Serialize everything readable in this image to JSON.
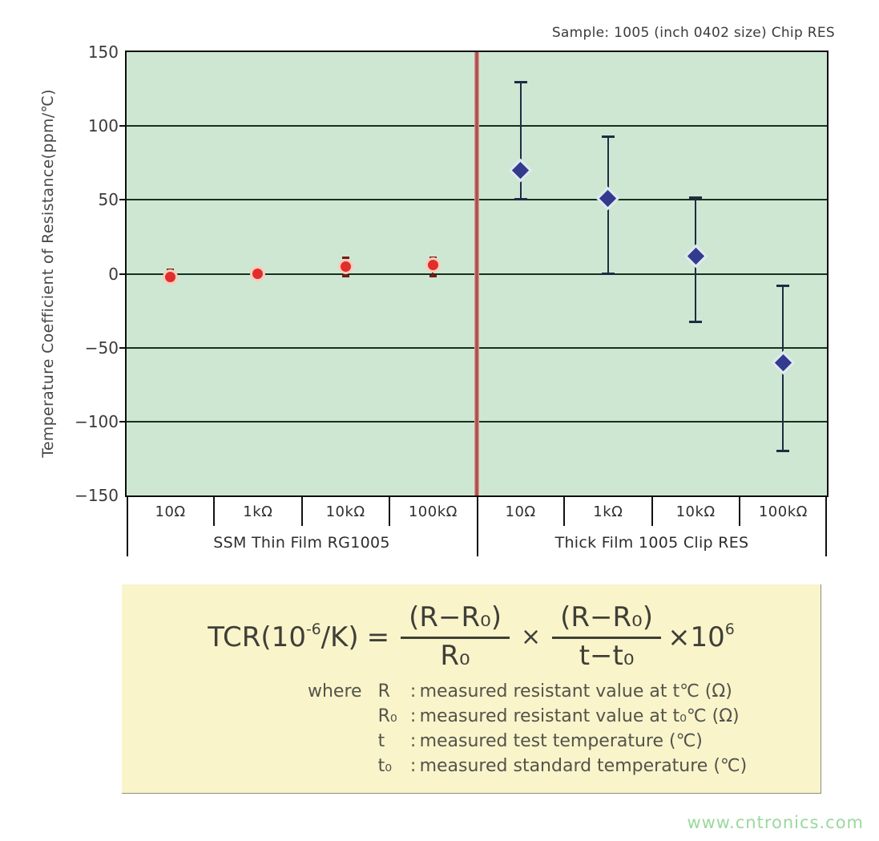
{
  "header": {
    "sample_label": "Sample: 1005 (inch 0402 size) Chip RES"
  },
  "chart_data": {
    "type": "scatter",
    "title": "Sample: 1005 (inch 0402 size) Chip RES",
    "ylabel": "Temperature Coefficient of Resistance(ppm/℃)",
    "ylim": [
      -150,
      150
    ],
    "y_ticks": [
      "150",
      "100",
      "50",
      "0",
      "−50",
      "−100",
      "−150"
    ],
    "y_tick_values": [
      150,
      100,
      50,
      0,
      -50,
      -100,
      -150
    ],
    "gridlines": [
      100,
      50,
      0,
      -50,
      -100
    ],
    "grid": true,
    "legend_position": "none",
    "divider_color": "#b5524d",
    "groups": [
      {
        "label": "SSM Thin Film RG1005",
        "categories": [
          "10Ω",
          "1kΩ",
          "10kΩ",
          "100kΩ"
        ],
        "series": {
          "name": "SSM Thin Film RG1005",
          "marker": "circle",
          "color": "#e02d2d",
          "halo": "#f7cdbb",
          "bar_color": "#7c1a16",
          "points": [
            {
              "category": "10Ω",
              "value": -2,
              "err_lo": -6,
              "err_hi": 3
            },
            {
              "category": "1kΩ",
              "value": 0,
              "err_lo": -3,
              "err_hi": 4
            },
            {
              "category": "10kΩ",
              "value": 5,
              "err_lo": -2,
              "err_hi": 11
            },
            {
              "category": "100kΩ",
              "value": 6,
              "err_lo": -2,
              "err_hi": 11
            }
          ]
        }
      },
      {
        "label": "Thick Film 1005 Clip RES",
        "categories": [
          "10Ω",
          "1kΩ",
          "10kΩ",
          "100kΩ"
        ],
        "series": {
          "name": "Thick Film 1005 Clip RES",
          "marker": "diamond",
          "color": "#323b8d",
          "halo": "#dfe9f0",
          "bar_color": "#1d2d44",
          "points": [
            {
              "category": "10Ω",
              "value": 70,
              "err_lo": 50,
              "err_hi": 130
            },
            {
              "category": "1kΩ",
              "value": 51,
              "err_lo": 0,
              "err_hi": 93
            },
            {
              "category": "10kΩ",
              "value": 12,
              "err_lo": -33,
              "err_hi": 52
            },
            {
              "category": "100kΩ",
              "value": -60,
              "err_lo": -120,
              "err_hi": -8
            }
          ]
        }
      }
    ]
  },
  "formula": {
    "lhs_pre": "TCR(10",
    "lhs_sup": "-6",
    "lhs_post": "/K)",
    "equals": "=",
    "frac1_num": "(R−R₀)",
    "frac1_den": "R₀",
    "times": "×",
    "frac2_num": "(R−R₀)",
    "frac2_den": "t−t₀",
    "tail_pre": "×10",
    "tail_sup": "6",
    "where_label": "where",
    "colon": ":",
    "definitions": [
      {
        "symbol": "R",
        "desc": "measured resistant value at t℃ (Ω)"
      },
      {
        "symbol": "R₀",
        "desc": "measured resistant value at t₀℃ (Ω)"
      },
      {
        "symbol": "t",
        "desc": "measured test temperature (℃)"
      },
      {
        "symbol": "t₀",
        "desc": "measured standard temperature (℃)"
      }
    ]
  },
  "watermark": "www.cntronics.com"
}
